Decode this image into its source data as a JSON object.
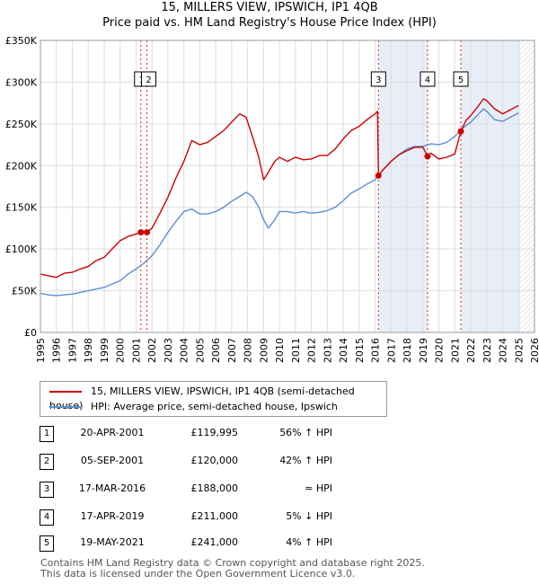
{
  "title_line1": "15, MILLERS VIEW, IPSWICH, IP1 4QB",
  "title_line2": "Price paid vs. HM Land Registry's House Price Index (HPI)",
  "colors": {
    "property": "#cc0000",
    "hpi": "#5b8fd4",
    "shade": "#e8eef8",
    "future_hatch": "#cccccc",
    "marker_line": "#dd2222",
    "grid": "#dddddd"
  },
  "legend": {
    "property_label": "15, MILLERS VIEW, IPSWICH, IP1 4QB (semi-detached house)",
    "hpi_label": "HPI: Average price, semi-detached house, Ipswich"
  },
  "transactions": [
    {
      "num": "1",
      "date": "20-APR-2001",
      "price": "£119,995",
      "hpi_rel": "56% ↑ HPI"
    },
    {
      "num": "2",
      "date": "05-SEP-2001",
      "price": "£120,000",
      "hpi_rel": "42% ↑ HPI"
    },
    {
      "num": "3",
      "date": "17-MAR-2016",
      "price": "£188,000",
      "hpi_rel": "≈ HPI"
    },
    {
      "num": "4",
      "date": "17-APR-2019",
      "price": "£211,000",
      "hpi_rel": "5% ↓ HPI"
    },
    {
      "num": "5",
      "date": "19-MAY-2021",
      "price": "£241,000",
      "hpi_rel": "4% ↑ HPI"
    }
  ],
  "footer": {
    "line1": "Contains HM Land Registry data © Crown copyright and database right 2025.",
    "line2": "This data is licensed under the Open Government Licence v3.0."
  },
  "chart_data": {
    "type": "line",
    "title": "Price paid vs. HM Land Registry's House Price Index (HPI)",
    "xlabel": "",
    "ylabel": "",
    "xlim": [
      1995,
      2026
    ],
    "ylim": [
      0,
      350000
    ],
    "x_ticks": [
      1995,
      1996,
      1997,
      1998,
      1999,
      2000,
      2001,
      2002,
      2003,
      2004,
      2005,
      2006,
      2007,
      2008,
      2009,
      2010,
      2011,
      2012,
      2013,
      2014,
      2015,
      2016,
      2017,
      2018,
      2019,
      2020,
      2021,
      2022,
      2023,
      2024,
      2025,
      2026
    ],
    "y_ticks": [
      {
        "value": 0,
        "label": "£0"
      },
      {
        "value": 50000,
        "label": "£50K"
      },
      {
        "value": 100000,
        "label": "£100K"
      },
      {
        "value": 150000,
        "label": "£150K"
      },
      {
        "value": 200000,
        "label": "£200K"
      },
      {
        "value": 250000,
        "label": "£250K"
      },
      {
        "value": 300000,
        "label": "£300K"
      },
      {
        "value": 350000,
        "label": "£350K"
      }
    ],
    "future_start": 2025.1,
    "sales": [
      {
        "label": "1",
        "x": 2001.3,
        "y": 119995
      },
      {
        "label": "2",
        "x": 2001.68,
        "y": 120000
      },
      {
        "label": "3",
        "x": 2016.21,
        "y": 188000
      },
      {
        "label": "4",
        "x": 2019.29,
        "y": 211000
      },
      {
        "label": "5",
        "x": 2021.38,
        "y": 241000
      }
    ],
    "shaded_ranges": [
      [
        2016.21,
        2019.29
      ],
      [
        2021.38,
        2025.1
      ]
    ],
    "series": [
      {
        "name": "15, MILLERS VIEW, IPSWICH, IP1 4QB (semi-detached house)",
        "x": [
          1995.0,
          1995.5,
          1996.0,
          1996.5,
          1997.0,
          1997.5,
          1998.0,
          1998.5,
          1999.0,
          1999.5,
          2000.0,
          2000.5,
          2001.0,
          2001.3,
          2001.68,
          2002.0,
          2002.5,
          2003.0,
          2003.5,
          2004.0,
          2004.5,
          2005.0,
          2005.5,
          2006.0,
          2006.5,
          2007.0,
          2007.5,
          2007.9,
          2008.3,
          2008.7,
          2009.0,
          2009.3,
          2009.7,
          2010.0,
          2010.5,
          2011.0,
          2011.5,
          2012.0,
          2012.5,
          2013.0,
          2013.5,
          2014.0,
          2014.5,
          2015.0,
          2015.5,
          2016.0,
          2016.15,
          2016.21,
          2016.5,
          2017.0,
          2017.5,
          2018.0,
          2018.5,
          2019.0,
          2019.29,
          2019.5,
          2020.0,
          2020.5,
          2021.0,
          2021.38,
          2021.7,
          2022.0,
          2022.5,
          2022.8,
          2023.0,
          2023.5,
          2024.0,
          2024.5,
          2025.0
        ],
        "y": [
          70000,
          68000,
          66000,
          71000,
          72000,
          76000,
          79000,
          86000,
          90000,
          100000,
          110000,
          115000,
          118000,
          119995,
          120000,
          125000,
          143000,
          162000,
          185000,
          205000,
          230000,
          225000,
          228000,
          235000,
          242000,
          252000,
          262000,
          258000,
          235000,
          210000,
          183000,
          192000,
          205000,
          210000,
          205000,
          210000,
          207000,
          208000,
          212000,
          212000,
          220000,
          232000,
          242000,
          247000,
          255000,
          262000,
          265000,
          188000,
          195000,
          205000,
          213000,
          218000,
          222000,
          222000,
          211000,
          215000,
          208000,
          210000,
          214000,
          241000,
          254000,
          260000,
          272000,
          280000,
          278000,
          268000,
          262000,
          267000,
          272000
        ]
      },
      {
        "name": "HPI: Average price, semi-detached house, Ipswich",
        "x": [
          1995.0,
          1995.5,
          1996.0,
          1996.5,
          1997.0,
          1997.5,
          1998.0,
          1998.5,
          1999.0,
          1999.5,
          2000.0,
          2000.5,
          2001.0,
          2001.5,
          2002.0,
          2002.5,
          2003.0,
          2003.5,
          2004.0,
          2004.5,
          2005.0,
          2005.5,
          2006.0,
          2006.5,
          2007.0,
          2007.5,
          2007.9,
          2008.3,
          2008.7,
          2009.0,
          2009.3,
          2009.7,
          2010.0,
          2010.5,
          2011.0,
          2011.5,
          2012.0,
          2012.5,
          2013.0,
          2013.5,
          2014.0,
          2014.5,
          2015.0,
          2015.5,
          2016.0,
          2016.5,
          2017.0,
          2017.5,
          2018.0,
          2018.5,
          2019.0,
          2019.5,
          2020.0,
          2020.5,
          2021.0,
          2021.5,
          2022.0,
          2022.5,
          2022.8,
          2023.0,
          2023.5,
          2024.0,
          2024.5,
          2025.0
        ],
        "y": [
          47000,
          45000,
          44000,
          45000,
          46000,
          48000,
          50000,
          52000,
          54000,
          58000,
          62000,
          70000,
          76000,
          83000,
          92000,
          105000,
          120000,
          133000,
          145000,
          148000,
          142000,
          142000,
          145000,
          150000,
          157000,
          163000,
          168000,
          163000,
          150000,
          135000,
          125000,
          135000,
          145000,
          145000,
          143000,
          145000,
          143000,
          144000,
          146000,
          150000,
          158000,
          167000,
          172000,
          178000,
          183000,
          195000,
          205000,
          213000,
          220000,
          223000,
          223000,
          226000,
          225000,
          228000,
          235000,
          245000,
          252000,
          262000,
          268000,
          265000,
          255000,
          253000,
          258000,
          263000
        ]
      }
    ]
  }
}
